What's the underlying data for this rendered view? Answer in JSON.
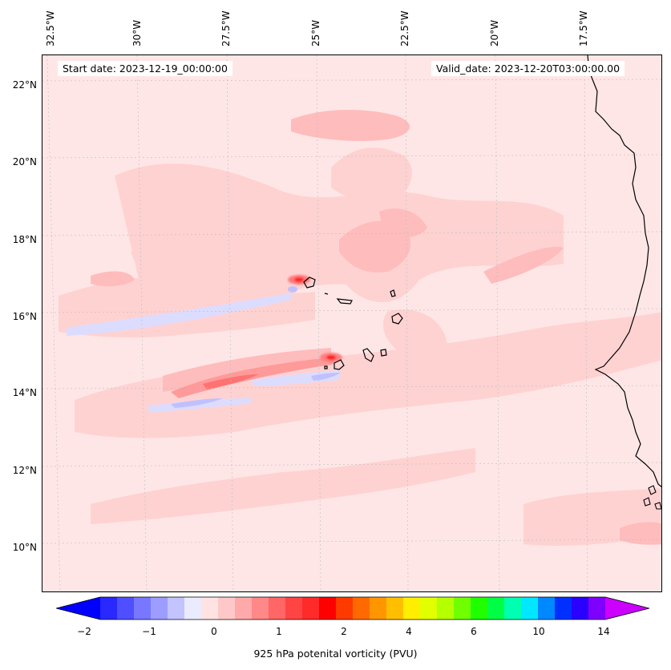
{
  "map": {
    "start_date_label": "Start date: 2023-12-19_00:00:00",
    "valid_date_label": "Valid_date: 2023-12-20T03:00:00.00",
    "longitude_labels": [
      "32.5°W",
      "30°W",
      "27.5°W",
      "25°W",
      "22.5°W",
      "20°W",
      "17.5°W"
    ],
    "latitude_labels": [
      "22°N",
      "20°N",
      "18°N",
      "16°N",
      "14°N",
      "12°N",
      "10°N"
    ],
    "field": "925 hPa potenital vorticity (PVU)"
  },
  "colorbar": {
    "title": "925 hPa potenital vorticity (PVU)",
    "tick_labels": [
      "−2",
      "−1",
      "0",
      "1",
      "2",
      "4",
      "6",
      "10",
      "14"
    ],
    "colors": [
      "#0000ff",
      "#2828ff",
      "#4f4fff",
      "#7777ff",
      "#9d9dff",
      "#c3c3ff",
      "#ebebff",
      "#ffe3e3",
      "#ffc8c8",
      "#ffaaaa",
      "#ff8888",
      "#ff6666",
      "#ff4444",
      "#ff2a2a",
      "#ff0000",
      "#ff3a00",
      "#ff6a00",
      "#ff9600",
      "#ffbf00",
      "#ffee00",
      "#e2ff00",
      "#b4ff00",
      "#70ff00",
      "#20ff00",
      "#00ff44",
      "#00ffb0",
      "#00e8ff",
      "#0088ff",
      "#0030ff",
      "#2a00ff",
      "#8000ff",
      "#cc00ff"
    ]
  }
}
